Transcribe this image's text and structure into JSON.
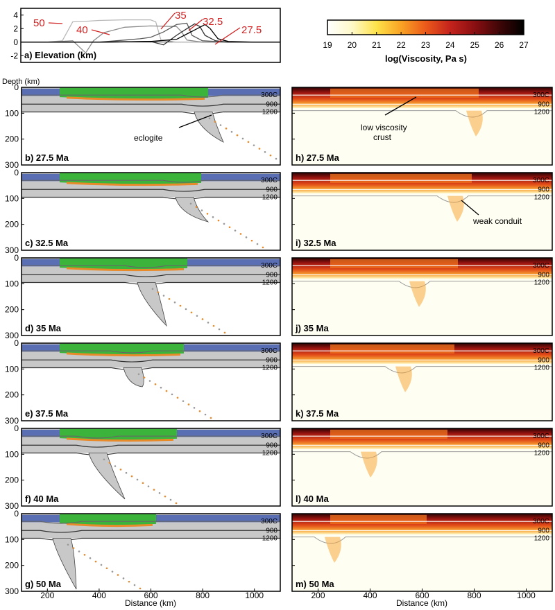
{
  "figure": {
    "colorbar": {
      "ticks": [
        "19",
        "20",
        "21",
        "22",
        "23",
        "24",
        "25",
        "26",
        "27"
      ],
      "label": "log(Viscosity, Pa s)",
      "colors": [
        "#ffffff",
        "#fff9c8",
        "#fde24a",
        "#f9a324",
        "#eb5a1a",
        "#c4231c",
        "#8a0f12",
        "#3f0607",
        "#000000"
      ]
    },
    "elevation": {
      "label": "a) Elevation (km)",
      "yticks": [
        "4",
        "2",
        "0",
        "-2"
      ],
      "time_labels": [
        "50",
        "40",
        "35",
        "32.5",
        "27.5"
      ]
    },
    "depth_label": "Depth (km)",
    "depth_ticks": [
      "0",
      "100",
      "200",
      "300"
    ],
    "distance_ticks": [
      "200",
      "400",
      "600",
      "800",
      "1000"
    ],
    "xlabel": "Distance (km)",
    "isotherms": [
      "300C",
      "900",
      "1200"
    ],
    "left_panels": [
      {
        "label": "b) 27.5 Ma"
      },
      {
        "label": "c) 32.5 Ma"
      },
      {
        "label": "d) 35 Ma"
      },
      {
        "label": "e) 37.5 Ma"
      },
      {
        "label": "f) 40 Ma"
      },
      {
        "label": "g) 50 Ma"
      }
    ],
    "right_panels": [
      {
        "label": "h) 27.5 Ma"
      },
      {
        "label": "i) 32.5 Ma"
      },
      {
        "label": "j) 35 Ma"
      },
      {
        "label": "k) 37.5 Ma"
      },
      {
        "label": "l) 40 Ma"
      },
      {
        "label": "m) 50 Ma"
      }
    ],
    "annotations": {
      "eclogite": "eclogite",
      "low_viscosity_line1": "low viscosity",
      "low_viscosity_line2": "crust",
      "weak_conduit": "weak conduit"
    },
    "material_colors": {
      "crust_green": "#3cb43c",
      "margin_blue": "#5a6eb4",
      "mantle_grey": "#c8c8c8",
      "eclogite_orange": "#e88a2a"
    }
  },
  "chart_data": [
    {
      "type": "line",
      "title": "a) Elevation (km)",
      "xlabel": "Distance (km)",
      "ylabel": "Elevation (km)",
      "xlim": [
        100,
        1100
      ],
      "ylim": [
        -3,
        5
      ],
      "series": [
        {
          "name": "50",
          "x": [
            100,
            200,
            260,
            300,
            360,
            400,
            500,
            600,
            620,
            640,
            700,
            800,
            900,
            1000,
            1100
          ],
          "y": [
            0,
            0,
            0.2,
            3.0,
            3.1,
            3.2,
            3.3,
            3.3,
            3.0,
            0.3,
            0,
            0,
            0,
            0,
            0
          ]
        },
        {
          "name": "40",
          "x": [
            100,
            200,
            300,
            350,
            380,
            420,
            500,
            600,
            700,
            720,
            740,
            800,
            900,
            1000,
            1100
          ],
          "y": [
            0,
            0,
            0.2,
            -1.6,
            0.2,
            1.4,
            2.2,
            2.4,
            2.3,
            1.5,
            0.3,
            0,
            0,
            0,
            0
          ]
        },
        {
          "name": "35",
          "x": [
            100,
            200,
            400,
            500,
            560,
            600,
            650,
            700,
            740,
            760,
            800,
            900,
            1000,
            1100
          ],
          "y": [
            0,
            0,
            0,
            0.3,
            0.5,
            0.7,
            1.5,
            2.6,
            2.8,
            1.0,
            0.2,
            0,
            0,
            0
          ]
        },
        {
          "name": "32.5",
          "x": [
            100,
            200,
            400,
            600,
            650,
            700,
            740,
            770,
            790,
            810,
            850,
            900,
            1000,
            1100
          ],
          "y": [
            0,
            0,
            0,
            0.1,
            -0.4,
            1.0,
            2.0,
            2.7,
            2.3,
            1.0,
            0.2,
            0,
            0,
            0
          ]
        },
        {
          "name": "27.5",
          "x": [
            100,
            200,
            400,
            600,
            700,
            740,
            780,
            810,
            830,
            860,
            900,
            1000,
            1100
          ],
          "y": [
            0,
            0,
            0,
            0.1,
            0.4,
            1.2,
            2.0,
            2.6,
            2.0,
            0.5,
            0.1,
            0,
            0
          ]
        }
      ]
    },
    {
      "type": "heatmap",
      "title": "log(Viscosity, Pa s)",
      "xlabel": "Distance (km)",
      "ylabel": "Depth (km)",
      "xlim": [
        100,
        1100
      ],
      "ylim": [
        0,
        300
      ],
      "colorbar": {
        "min": 19,
        "max": 27,
        "label": "log(Viscosity, Pa s)"
      }
    }
  ]
}
